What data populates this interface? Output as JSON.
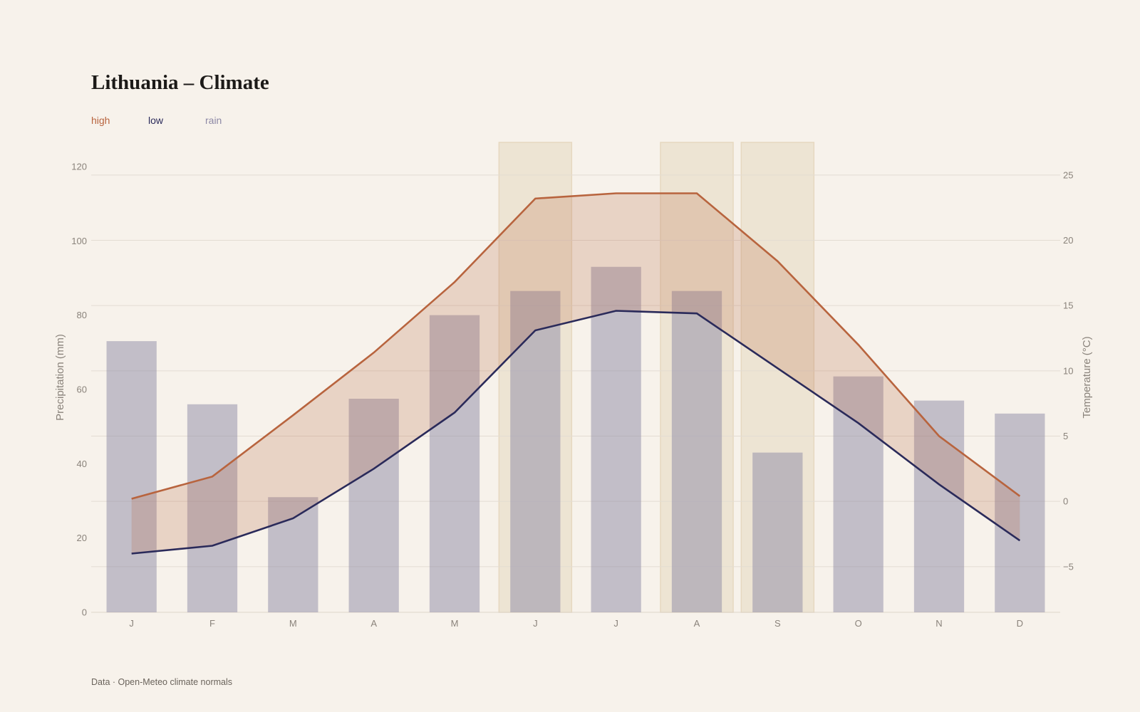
{
  "title": "Lithuania – Climate",
  "source": "Data · Open-Meteo climate normals",
  "colors": {
    "high": "#b8643e",
    "low": "#2a2a5a",
    "rain": "#8d89a6",
    "band": "#b8643e",
    "highlight": "#e6d8c0"
  },
  "chart_data": {
    "type": "bar+line",
    "categories": [
      "J",
      "F",
      "M",
      "A",
      "M",
      "J",
      "J",
      "A",
      "S",
      "O",
      "N",
      "D"
    ],
    "legend": [
      "high",
      "low",
      "rain"
    ],
    "legend_position": "top-left",
    "highlighted_months": [
      5,
      7,
      8
    ],
    "series": [
      {
        "name": "rain",
        "kind": "bar",
        "axis": "left",
        "values": [
          73,
          56,
          31,
          57.5,
          80,
          86.5,
          93,
          86.5,
          43,
          63.5,
          57,
          53.5
        ]
      },
      {
        "name": "high",
        "kind": "line",
        "axis": "right",
        "values": [
          0.2,
          1.9,
          6.6,
          11.4,
          16.8,
          23.2,
          23.6,
          23.6,
          18.4,
          12,
          5,
          0.4
        ]
      },
      {
        "name": "low",
        "kind": "line",
        "axis": "right",
        "values": [
          -4,
          -3.4,
          -1.3,
          2.5,
          6.8,
          13.1,
          14.6,
          14.4,
          10.2,
          6,
          1.3,
          -3
        ]
      }
    ],
    "y_left": {
      "label": "Precipitation (mm)",
      "ticks": [
        0,
        20,
        40,
        60,
        80,
        100,
        120
      ],
      "range": [
        0,
        126.5
      ]
    },
    "y_right": {
      "label": "Temperature (°C)",
      "ticks": [
        -5,
        0,
        5,
        10,
        15,
        20,
        25
      ],
      "range": [
        -8.5,
        27.5
      ]
    },
    "grid": true
  }
}
